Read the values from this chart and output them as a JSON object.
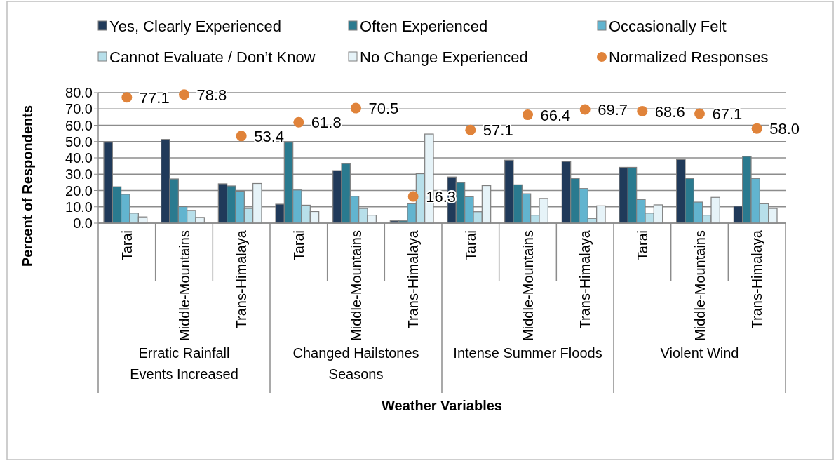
{
  "chart_data": {
    "type": "bar",
    "xlabel": "Weather Variables",
    "ylabel": "Percent of Respondents",
    "categories": [
      "Tarai",
      "Middle-Mountains",
      "Trans-Himalaya",
      "Tarai",
      "Middle-Mountains",
      "Trans-Himalaya",
      "Tarai",
      "Middle-Mountains",
      "Trans-Himalaya",
      "Tarai",
      "Middle-Mountains",
      "Trans-Himalaya"
    ],
    "series": [
      {
        "name": "Yes, Clearly Experienced",
        "color": "#203a5a",
        "values": [
          49.6,
          51.3,
          24.1,
          11.6,
          32.2,
          1.4,
          28.3,
          38.6,
          37.8,
          34.2,
          39.0,
          10.4
        ]
      },
      {
        "name": "Often Experienced",
        "color": "#2a7a8f",
        "values": [
          22.3,
          27.1,
          22.8,
          49.6,
          36.5,
          1.4,
          24.9,
          23.5,
          27.4,
          34.2,
          27.4,
          40.9
        ]
      },
      {
        "name": "Occasionally Felt",
        "color": "#62b4cf",
        "values": [
          17.7,
          10.1,
          19.6,
          20.3,
          16.5,
          11.9,
          16.2,
          18.0,
          21.2,
          14.5,
          12.9,
          27.4
        ]
      },
      {
        "name": "Cannot Evaluate / Don’t Know",
        "color": "#b7dfea",
        "values": [
          6.1,
          7.8,
          9.0,
          11.0,
          9.0,
          30.3,
          7.0,
          4.9,
          2.9,
          6.1,
          4.9,
          11.9
        ]
      },
      {
        "name": "No Change Experienced",
        "color": "#e6f3f8",
        "values": [
          3.8,
          3.5,
          24.3,
          7.1,
          4.9,
          54.6,
          23.0,
          15.1,
          10.6,
          11.2,
          15.8,
          9.0
        ]
      },
      {
        "name": "Normalized Responses",
        "type": "scatter",
        "color": "#e0833a",
        "values": [
          77.1,
          78.8,
          53.4,
          61.8,
          70.5,
          16.3,
          57.1,
          66.4,
          69.7,
          68.6,
          67.1,
          58.0
        ],
        "value_labels": [
          "77.1",
          "78.8",
          "53.4",
          "61.8",
          "70.5",
          "16.3",
          "57.1",
          "66.4",
          "69.7",
          "68.6",
          "67.1",
          "58.0"
        ]
      }
    ],
    "ylim": [
      0,
      80
    ],
    "yticks": [
      {
        "value": 0,
        "label": "0.0"
      },
      {
        "value": 10,
        "label": "10.0"
      },
      {
        "value": 20,
        "label": "20.0"
      },
      {
        "value": 30,
        "label": "30.0"
      },
      {
        "value": 40,
        "label": "40.0"
      },
      {
        "value": 50,
        "label": "50.0"
      },
      {
        "value": 60,
        "label": "60.0"
      },
      {
        "value": 70,
        "label": "70.0"
      },
      {
        "value": 80,
        "label": "80.0"
      }
    ],
    "grid": "y",
    "legend": "top",
    "marker": "circle",
    "annotations": [
      "Erratic Rainfall Events Increased",
      "Changed Hailstones Seasons",
      "Intense Summer Floods",
      "Violent Wind"
    ]
  }
}
